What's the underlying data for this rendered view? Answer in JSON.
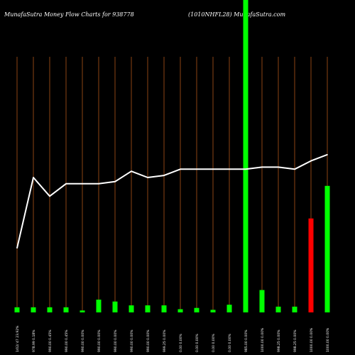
{
  "header": {
    "title": "MunafaSutra  Money Flow  Charts for 938778",
    "subtitle": "(1010NHFL28) MunafaSutra.com"
  },
  "colors": {
    "background": "#000000",
    "gridline": "#8b4513",
    "line": "#ffffff",
    "bar_up": "#00ff00",
    "bar_down": "#ff0000",
    "text": "#ffffff"
  },
  "chart_data": {
    "type": "bar",
    "title": "MunafaSutra  Money Flow  Charts for 938778",
    "subtitle": "(1010NHFL28) MunafaSutra.com",
    "grid": true,
    "categories": [
      "1/02/ 47 23.92%",
      "978.99 0.18%",
      "990.00 0.45%",
      "990.00 0.45%",
      "990.00 0.00%",
      "990.00 0.00%",
      "990.00 0.00%",
      "990.00 0.00%",
      "990.00 0.00%",
      "999.25 0.00%",
      "0.00 0.00%",
      "0.00 0.00%",
      "0.00 0.00%",
      "0.00 0.00%",
      "985.00 0.00%",
      "1000.00 0.00%",
      "998.25 0.00%",
      "998.25 0.00%",
      "1000.00 0.00%",
      "1000.00 0.00%"
    ],
    "volume_bars": {
      "values": [
        8,
        8,
        8,
        8,
        3,
        20,
        17,
        11,
        11,
        11,
        5,
        7,
        4,
        12,
        500,
        35,
        9,
        9,
        147,
        198
      ],
      "direction": [
        "up",
        "up",
        "up",
        "up",
        "up",
        "up",
        "up",
        "up",
        "up",
        "up",
        "up",
        "up",
        "up",
        "up",
        "up",
        "up",
        "up",
        "up",
        "down",
        "up"
      ],
      "ylim": [
        0,
        400
      ]
    },
    "series": [
      {
        "values": [
          951,
          985,
          976,
          982,
          982,
          982,
          983,
          988,
          985,
          986,
          989,
          989,
          989,
          989,
          989,
          990,
          990,
          989,
          993,
          996
        ],
        "ylim": [
          920,
          1050
        ]
      }
    ]
  }
}
